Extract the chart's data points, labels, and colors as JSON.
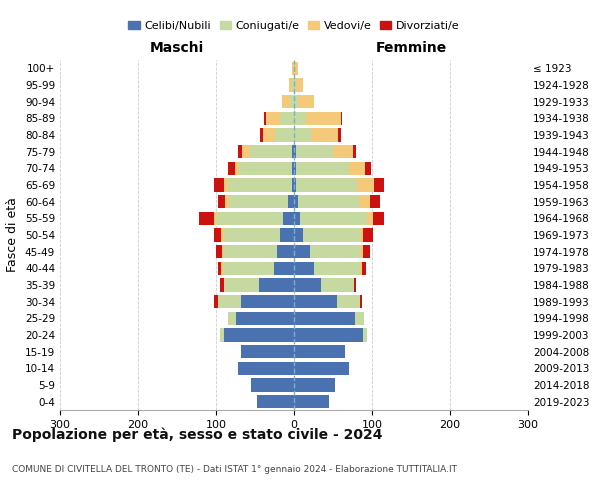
{
  "age_groups": [
    "0-4",
    "5-9",
    "10-14",
    "15-19",
    "20-24",
    "25-29",
    "30-34",
    "35-39",
    "40-44",
    "45-49",
    "50-54",
    "55-59",
    "60-64",
    "65-69",
    "70-74",
    "75-79",
    "80-84",
    "85-89",
    "90-94",
    "95-99",
    "100+"
  ],
  "birth_years": [
    "2019-2023",
    "2014-2018",
    "2009-2013",
    "2004-2008",
    "1999-2003",
    "1994-1998",
    "1989-1993",
    "1984-1988",
    "1979-1983",
    "1974-1978",
    "1969-1973",
    "1964-1968",
    "1959-1963",
    "1954-1958",
    "1949-1953",
    "1944-1948",
    "1939-1943",
    "1934-1938",
    "1929-1933",
    "1924-1928",
    "≤ 1923"
  ],
  "colors": {
    "celibi": "#4a72b0",
    "coniugati": "#c5d9a0",
    "vedovi": "#f5c97a",
    "divorziati": "#cc1111"
  },
  "maschi": {
    "celibi": [
      48,
      55,
      72,
      68,
      90,
      75,
      68,
      45,
      26,
      22,
      18,
      14,
      8,
      3,
      3,
      2,
      0,
      0,
      0,
      0,
      0
    ],
    "coniugati": [
      0,
      0,
      0,
      0,
      5,
      10,
      30,
      45,
      65,
      68,
      72,
      85,
      75,
      82,
      68,
      55,
      25,
      18,
      5,
      2,
      0
    ],
    "vedovi": [
      0,
      0,
      0,
      0,
      0,
      0,
      0,
      0,
      2,
      2,
      3,
      3,
      5,
      5,
      5,
      10,
      15,
      18,
      10,
      5,
      2
    ],
    "divorziati": [
      0,
      0,
      0,
      0,
      0,
      0,
      5,
      5,
      5,
      8,
      10,
      20,
      10,
      12,
      8,
      5,
      4,
      2,
      0,
      0,
      0
    ]
  },
  "femmine": {
    "celibi": [
      45,
      52,
      70,
      65,
      88,
      78,
      55,
      35,
      25,
      20,
      12,
      8,
      5,
      3,
      3,
      2,
      0,
      0,
      0,
      0,
      0
    ],
    "coniugati": [
      0,
      0,
      0,
      0,
      5,
      12,
      30,
      42,
      60,
      65,
      72,
      85,
      78,
      78,
      68,
      48,
      22,
      15,
      5,
      2,
      0
    ],
    "vedovi": [
      0,
      0,
      0,
      0,
      0,
      0,
      0,
      0,
      2,
      3,
      5,
      8,
      15,
      22,
      20,
      25,
      35,
      45,
      20,
      10,
      5
    ],
    "divorziati": [
      0,
      0,
      0,
      0,
      0,
      0,
      2,
      2,
      5,
      10,
      12,
      15,
      12,
      12,
      8,
      5,
      3,
      2,
      0,
      0,
      0
    ]
  },
  "title": "Popolazione per età, sesso e stato civile - 2024",
  "subtitle": "COMUNE DI CIVITELLA DEL TRONTO (TE) - Dati ISTAT 1° gennaio 2024 - Elaborazione TUTTITALIA.IT",
  "header_left": "Maschi",
  "header_right": "Femmine",
  "ylabel_left": "Fasce di età",
  "xlim": 300,
  "xticks": [
    -300,
    -200,
    -100,
    0,
    100,
    200,
    300
  ],
  "xtick_labels": [
    "300",
    "200",
    "100",
    "0",
    "100",
    "200",
    "300"
  ],
  "legend_labels": [
    "Celibi/Nubili",
    "Coniugati/e",
    "Vedovi/e",
    "Divorziati/e"
  ],
  "legend_colors": [
    "#4a72b0",
    "#c5d9a0",
    "#f5c97a",
    "#cc1111"
  ],
  "bg_color": "#ffffff",
  "grid_color": "#cccccc"
}
